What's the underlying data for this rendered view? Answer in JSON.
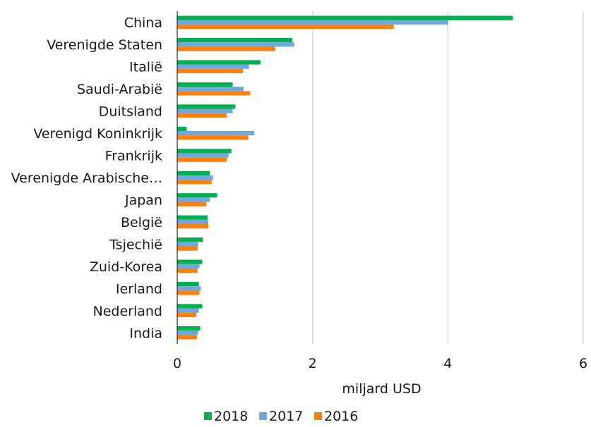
{
  "chart_data": {
    "type": "bar",
    "orientation": "horizontal",
    "categories": [
      "China",
      "Verenigde Staten",
      "Italië",
      "Saudi-Arabië",
      "Duitsland",
      "Verenigd Koninkrijk",
      "Frankrijk",
      "Verenigde Arabische…",
      "Japan",
      "België",
      "Tsjechië",
      "Zuid-Korea",
      "Ierland",
      "Nederland",
      "India"
    ],
    "series": [
      {
        "name": "2018",
        "color": "#00b050",
        "values": [
          4.96,
          1.7,
          1.23,
          0.82,
          0.86,
          0.14,
          0.8,
          0.48,
          0.59,
          0.45,
          0.38,
          0.37,
          0.32,
          0.37,
          0.34
        ]
      },
      {
        "name": "2017",
        "color": "#6fa8dc",
        "values": [
          4.0,
          1.73,
          1.06,
          0.98,
          0.82,
          1.14,
          0.76,
          0.53,
          0.48,
          0.46,
          0.31,
          0.33,
          0.35,
          0.32,
          0.31
        ]
      },
      {
        "name": "2016",
        "color": "#ff7f0e",
        "values": [
          3.2,
          1.45,
          0.97,
          1.08,
          0.73,
          1.05,
          0.73,
          0.51,
          0.43,
          0.46,
          0.3,
          0.3,
          0.33,
          0.28,
          0.29
        ]
      }
    ],
    "xlim": [
      0,
      6
    ],
    "xticks": [
      "0",
      "2",
      "4",
      "6"
    ],
    "xlabel": "miljard USD",
    "grid": "vertical",
    "legend_position": "bottom"
  }
}
